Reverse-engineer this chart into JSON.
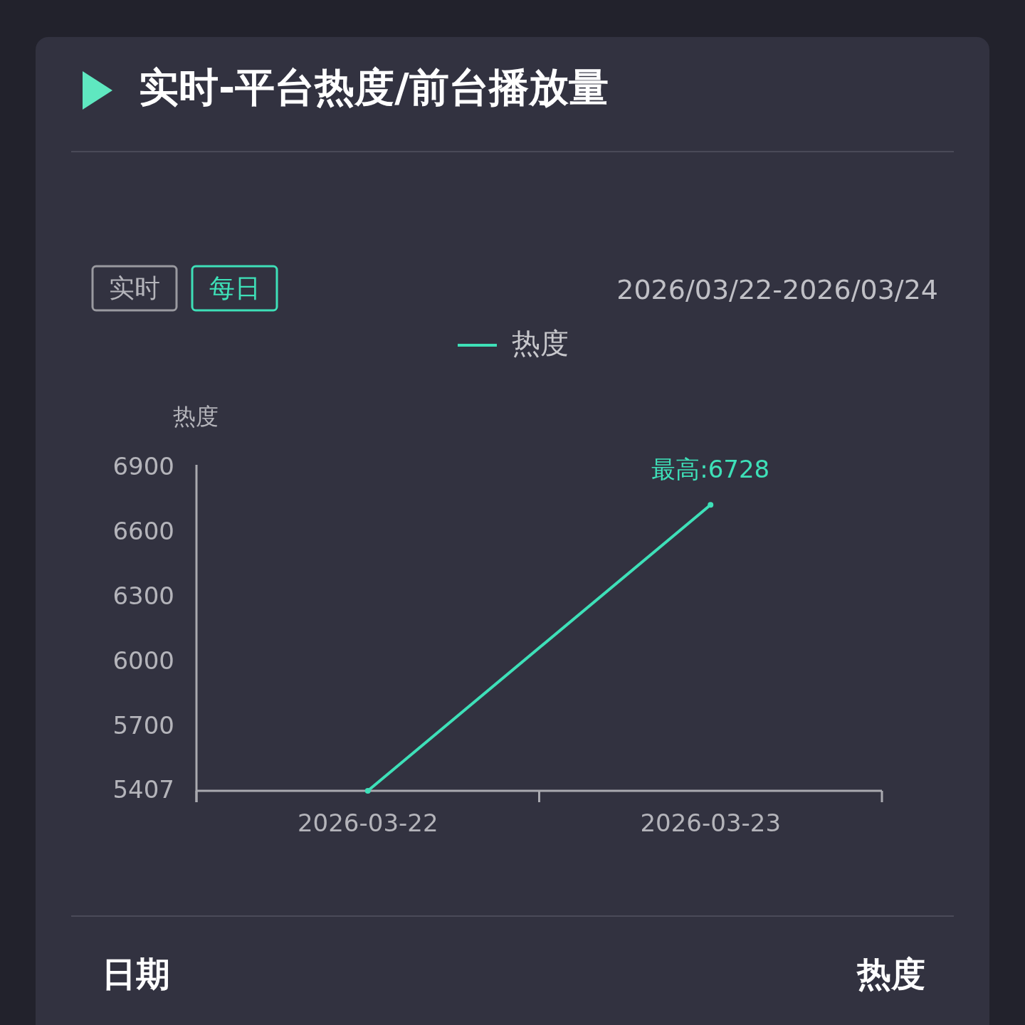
{
  "chart_data": {
    "type": "line",
    "title": "实时-平台热度/前台播放量",
    "ylabel": "热度",
    "categories": [
      "2026-03-22",
      "2026-03-23"
    ],
    "series": [
      {
        "name": "热度",
        "color": "#3ee0b8",
        "values": [
          5407,
          6728
        ]
      }
    ],
    "ylim": [
      5407,
      6900
    ],
    "yticks": [
      5407,
      5700,
      6000,
      6300,
      6600,
      6900
    ],
    "legend": "top",
    "grid": false,
    "marker": "circle",
    "line_style": "solid",
    "annotations": [
      {
        "text": "最高:6728",
        "x": "2026-03-23",
        "y": 6728
      },
      "实时",
      "每日",
      "2026/03/22-2026/03/24",
      "日期",
      "热度"
    ]
  }
}
